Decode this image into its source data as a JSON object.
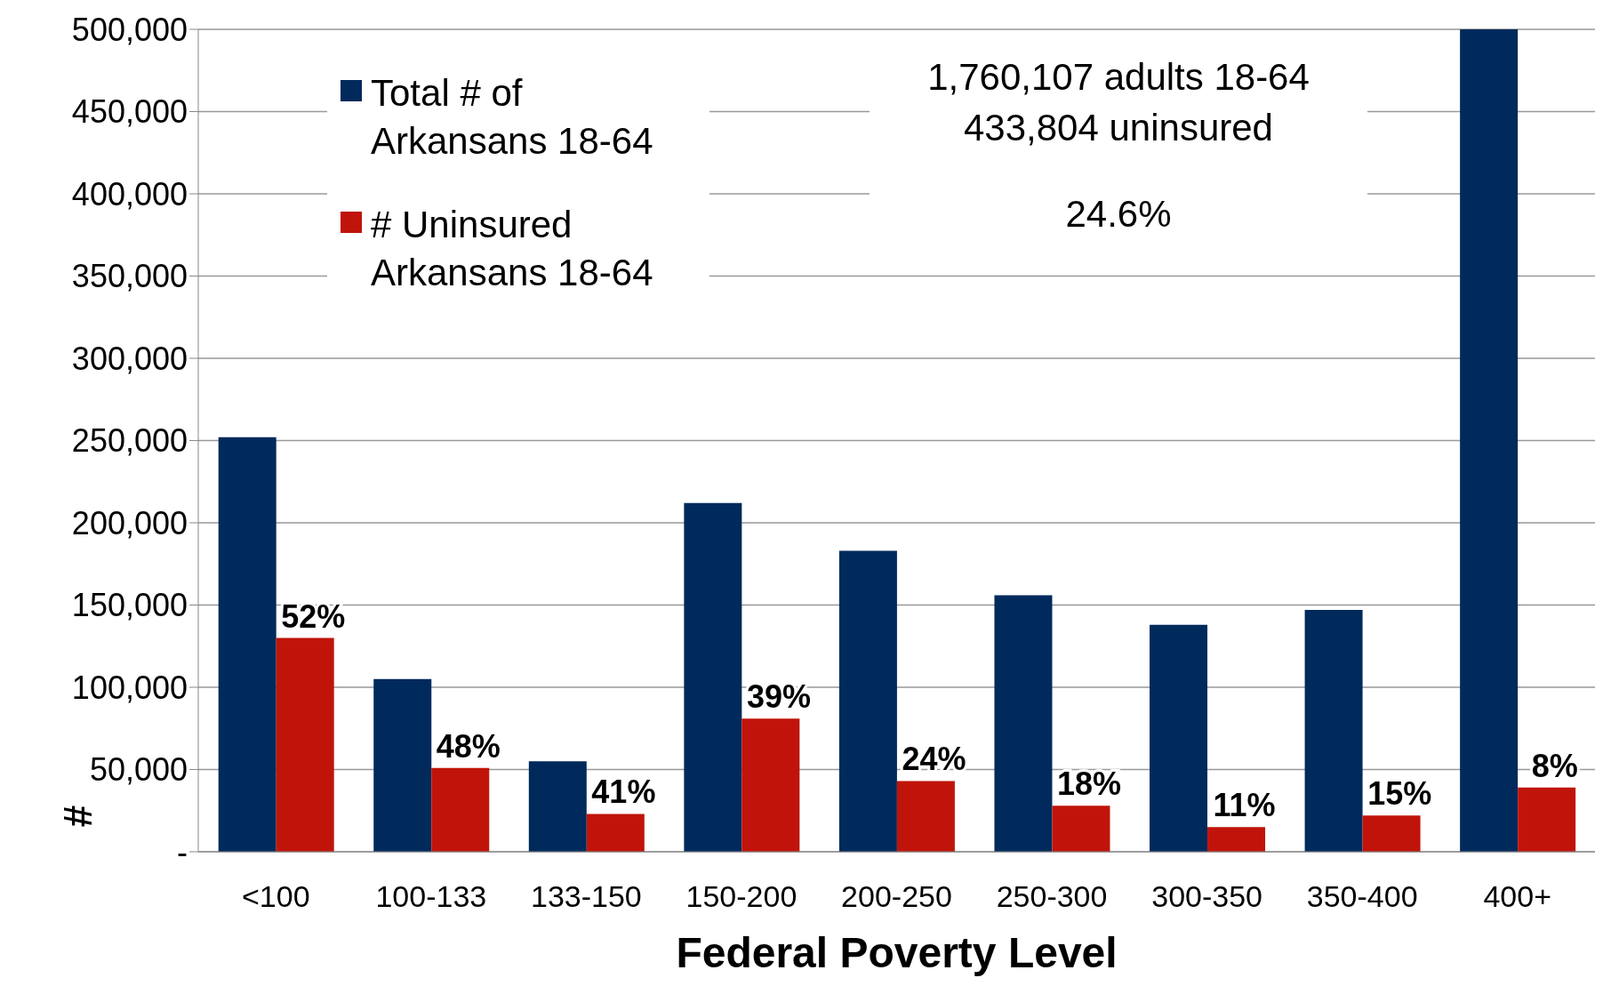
{
  "chart_data": {
    "type": "bar",
    "xlabel": "Federal Poverty Level",
    "ylabel": "#",
    "categories": [
      "<100",
      "100-133",
      "133-150",
      "150-200",
      "200-250",
      "250-300",
      "300-350",
      "350-400",
      "400+"
    ],
    "series": [
      {
        "name": "Total # of Arkansans 18-64",
        "color": "#002a5c",
        "values": [
          252000,
          105000,
          55000,
          212000,
          183000,
          156000,
          138000,
          147000,
          500000
        ]
      },
      {
        "name": "# Uninsured Arkansans 18-64",
        "color": "#c0140a",
        "values": [
          130000,
          51000,
          23000,
          81000,
          43000,
          28000,
          15000,
          22000,
          39000
        ]
      }
    ],
    "ylim": [
      0,
      500000
    ],
    "yticks": [
      {
        "value": 0,
        "label": "-"
      },
      {
        "value": 50000,
        "label": "50,000"
      },
      {
        "value": 100000,
        "label": "100,000"
      },
      {
        "value": 150000,
        "label": "150,000"
      },
      {
        "value": 200000,
        "label": "200,000"
      },
      {
        "value": 250000,
        "label": "250,000"
      },
      {
        "value": 300000,
        "label": "300,000"
      },
      {
        "value": 350000,
        "label": "350,000"
      },
      {
        "value": 400000,
        "label": "400,000"
      },
      {
        "value": 450000,
        "label": "450,000"
      },
      {
        "value": 500000,
        "label": "500,000"
      }
    ],
    "grid": "y",
    "legend": "top left",
    "annotations": [
      "1,760,107 adults 18-64",
      "433,804 uninsured",
      "24.6%",
      {
        "text": "52%",
        "x": "<100",
        "y": 130000
      },
      {
        "text": "48%",
        "x": "100-133",
        "y": 51000
      },
      {
        "text": "41%",
        "x": "133-150",
        "y": 23000
      },
      {
        "text": "39%",
        "x": "150-200",
        "y": 81000
      },
      {
        "text": "24%",
        "x": "200-250",
        "y": 43000
      },
      {
        "text": "18%",
        "x": "250-300",
        "y": 28000
      },
      {
        "text": "11%",
        "x": "300-350",
        "y": 15000
      },
      {
        "text": "15%",
        "x": "350-400",
        "y": 22000
      },
      {
        "text": "8%",
        "x": "400+",
        "y": 39000
      }
    ]
  }
}
